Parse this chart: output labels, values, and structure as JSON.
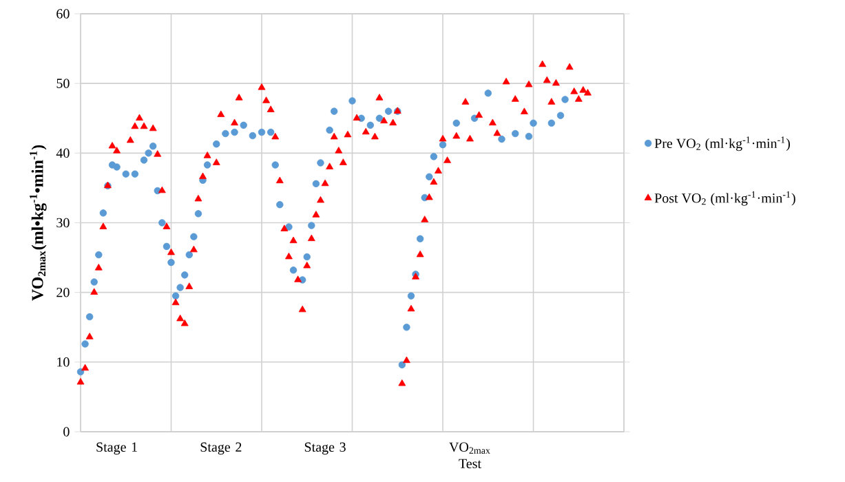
{
  "chart_data": {
    "type": "scatter",
    "ylabel": "VO$_{2max}$(ml•kg$^{-1}$•min$^{-1}$)",
    "categories": [
      null,
      null,
      null,
      null,
      null,
      null,
      null,
      null,
      "Stage 1",
      null,
      null,
      null,
      null,
      null,
      null,
      null,
      null,
      null,
      null,
      null,
      null,
      null,
      null,
      null,
      null,
      null,
      null,
      null,
      null,
      null,
      null,
      "Stage 2",
      null,
      null,
      null,
      null,
      null,
      null,
      null,
      null,
      null,
      null,
      null,
      null,
      null,
      null,
      null,
      null,
      null,
      null,
      null,
      null,
      null,
      null,
      "Stage 3",
      null,
      null,
      null,
      null,
      null,
      null,
      null,
      null,
      null,
      null,
      null,
      null,
      null,
      null,
      null,
      null,
      null,
      null,
      null,
      null,
      null,
      null,
      null,
      null,
      null,
      null,
      null,
      null,
      null,
      null,
      null,
      "VO$_{2max}$ Test",
      null,
      null,
      null,
      null,
      null,
      null,
      null,
      null,
      null,
      null,
      null,
      null,
      null,
      null,
      null,
      null,
      null,
      null,
      null,
      null,
      null,
      null,
      null,
      null,
      null,
      null,
      null,
      null,
      null,
      null,
      null,
      null,
      null,
      null
    ],
    "ylim": [
      0,
      60
    ],
    "yticks": [
      0,
      10,
      20,
      30,
      40,
      50,
      60
    ],
    "grid": true,
    "legend": "right",
    "series": [
      {
        "name": "Pre VO$_{2}$ (ml·kg$^{-1}$·min$^{-1}$)",
        "color": "#5b9bd5",
        "marker": "circle",
        "values": [
          8.6,
          12.6,
          16.5,
          21.5,
          25.4,
          31.4,
          35.3,
          38.3,
          38,
          null,
          37,
          null,
          37,
          null,
          39,
          40,
          41,
          34.6,
          30,
          26.6,
          24.3,
          19.5,
          20.7,
          22.5,
          25.4,
          28,
          31.3,
          36.1,
          38.3,
          null,
          41.3,
          null,
          42.8,
          null,
          43,
          null,
          44,
          null,
          42.5,
          null,
          43,
          null,
          43,
          38.3,
          32.6,
          null,
          29.4,
          23.2,
          null,
          21.8,
          25.1,
          29.6,
          35.6,
          38.6,
          null,
          43.3,
          46,
          null,
          null,
          null,
          47.5,
          null,
          45,
          null,
          44,
          null,
          45,
          null,
          46,
          null,
          46,
          9.6,
          15,
          19.5,
          22.6,
          27.7,
          33.6,
          36.6,
          39.5,
          null,
          41.2,
          null,
          null,
          44.3,
          null,
          null,
          null,
          45,
          null,
          null,
          48.6,
          null,
          null,
          42,
          null,
          null,
          42.8,
          null,
          null,
          42.4,
          44.3,
          null,
          null,
          null,
          44.3,
          null,
          45.4,
          47.7,
          null,
          null,
          null,
          null,
          null,
          null,
          null,
          null,
          null,
          null,
          null,
          null,
          null
        ]
      },
      {
        "name": "Post VO$_{2}$ (ml·kg$^{-1}$·min$^{-1}$)",
        "color": "#ff0000",
        "marker": "triangle",
        "values": [
          7.1,
          9.1,
          13.6,
          20,
          23.5,
          29.4,
          35.3,
          41,
          40.3,
          null,
          null,
          41.8,
          43.8,
          45,
          43.8,
          null,
          43.5,
          39.8,
          34.6,
          29.4,
          25.7,
          18.5,
          16.2,
          15.5,
          20.8,
          26.1,
          33.4,
          36.6,
          39.6,
          null,
          38.6,
          45.5,
          null,
          null,
          44.3,
          47.9,
          null,
          null,
          null,
          null,
          49.4,
          47.5,
          46.2,
          42.3,
          36,
          29.1,
          25.1,
          27.4,
          21.8,
          17.5,
          23.8,
          27.7,
          31.1,
          33.2,
          35.6,
          38,
          42.3,
          40.3,
          38.6,
          42.6,
          null,
          45,
          null,
          43,
          null,
          42.3,
          47.9,
          44.6,
          null,
          44.3,
          46,
          6.9,
          10.2,
          17.6,
          22.2,
          25.4,
          30.4,
          33.6,
          35.8,
          37.4,
          42,
          38.9,
          null,
          42.4,
          null,
          47.3,
          42,
          null,
          45.4,
          null,
          null,
          44.3,
          42.8,
          null,
          50.2,
          null,
          47.7,
          null,
          45.9,
          49.8,
          null,
          null,
          52.7,
          50.4,
          47.3,
          50,
          null,
          null,
          52.3,
          48.8,
          47.7,
          49,
          48.6,
          null,
          null,
          null,
          null,
          null,
          null,
          null,
          null
        ]
      }
    ]
  }
}
